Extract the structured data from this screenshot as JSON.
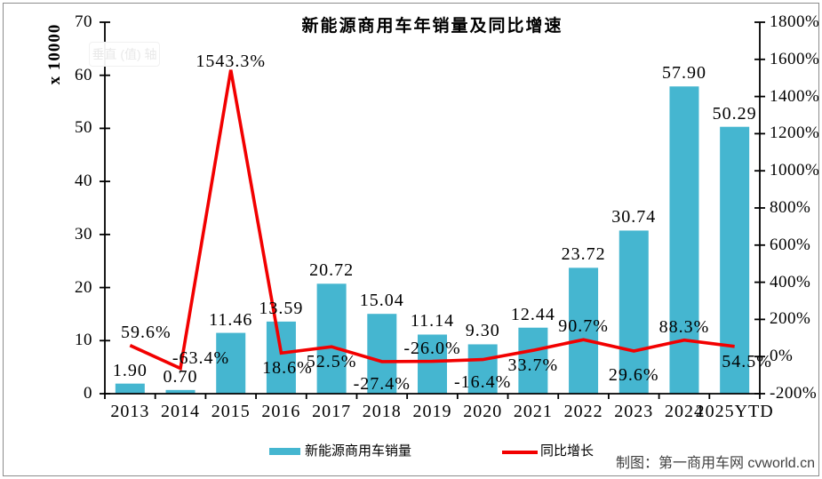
{
  "title": "新能源商用车年销量及同比增速",
  "watermark_text": "垂直 (值) 轴",
  "attribution": "制图：第一商用车网 cvworld.cn",
  "legend": {
    "bar_label": "新能源商用车销量",
    "line_label": "同比增长"
  },
  "colors": {
    "bar": "#45B6D0",
    "line": "#F20000",
    "axis": "#000000",
    "text": "#000000",
    "border": "#8C8C8C"
  },
  "chart_data": {
    "type": "combo",
    "title": "新能源商用车年销量及同比增速",
    "categories": [
      "2013",
      "2014",
      "2015",
      "2016",
      "2017",
      "2018",
      "2019",
      "2020",
      "2021",
      "2022",
      "2023",
      "2024",
      "2025YTD"
    ],
    "series": [
      {
        "name": "新能源商用车销量",
        "type": "bar",
        "axis": "left",
        "color": "#45B6D0",
        "values": [
          1.9,
          0.7,
          11.46,
          13.59,
          20.72,
          15.04,
          11.14,
          9.3,
          12.44,
          23.72,
          30.74,
          57.9,
          50.29
        ],
        "labels": [
          "1.90",
          "0.70",
          "11.46",
          "13.59",
          "20.72",
          "15.04",
          "11.14",
          "9.30",
          "12.44",
          "23.72",
          "30.74",
          "57.90",
          "50.29"
        ]
      },
      {
        "name": "同比增长",
        "type": "line",
        "axis": "right",
        "color": "#F20000",
        "values": [
          59.6,
          -63.4,
          1543.3,
          18.6,
          52.5,
          -27.4,
          -26.0,
          -16.4,
          33.7,
          90.7,
          29.6,
          88.3,
          54.5
        ],
        "labels": [
          "59.6%",
          "-63.4%",
          "1543.3%",
          "18.6%",
          "52.5%",
          "-27.4%",
          "-26.0%",
          "-16.4%",
          "33.7%",
          "90.7%",
          "29.6%",
          "88.3%",
          "54.5%"
        ],
        "label_placement": [
          {
            "side": "above",
            "dx": 18
          },
          {
            "side": "above",
            "dx": 23,
            "dy": 4
          },
          {
            "side": "above",
            "dx": 0,
            "dy": 5
          },
          {
            "side": "below",
            "dx": 7
          },
          {
            "side": "below"
          },
          {
            "side": "below",
            "dy": 8
          },
          {
            "side": "above"
          },
          {
            "side": "below",
            "dy": 8
          },
          {
            "side": "below"
          },
          {
            "side": "above"
          },
          {
            "side": "below",
            "dy": 10
          },
          {
            "side": "above"
          },
          {
            "side": "below",
            "dx": 14
          }
        ]
      }
    ],
    "left_axis": {
      "title": "x 10000",
      "min": 0,
      "max": 70,
      "step": 10,
      "tick_labels": [
        "0",
        "10",
        "20",
        "30",
        "40",
        "50",
        "60",
        "70"
      ]
    },
    "right_axis": {
      "min": -200,
      "max": 1800,
      "step": 200,
      "tick_labels": [
        "-200%",
        "0%",
        "200%",
        "400%",
        "600%",
        "800%",
        "1000%",
        "1200%",
        "1400%",
        "1600%",
        "1800%"
      ]
    },
    "grid": false,
    "legend_position": "bottom"
  }
}
